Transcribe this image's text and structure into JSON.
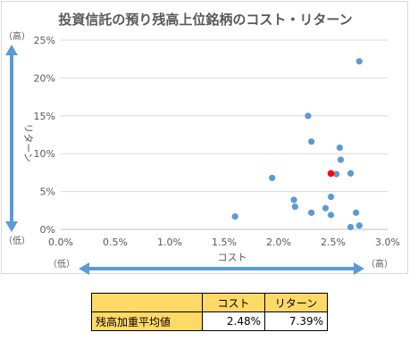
{
  "chart_data": {
    "type": "scatter",
    "title": "投資信託の預り残高上位銘柄のコスト・リターン",
    "xlabel": "コスト",
    "ylabel": "リターン",
    "xlim": [
      0,
      0.03
    ],
    "ylim": [
      0,
      0.25
    ],
    "x_ticks": [
      "0.0%",
      "0.5%",
      "1.0%",
      "1.5%",
      "2.0%",
      "2.5%",
      "3.0%"
    ],
    "y_ticks": [
      "0%",
      "5%",
      "10%",
      "15%",
      "20%",
      "25%"
    ],
    "x_ends": [
      "（低）",
      "（高）"
    ],
    "y_ends": [
      "（高）",
      "（低）"
    ],
    "grid": "horizontal",
    "point_color": "#5b9bd5",
    "highlight_color": "#ff0000",
    "points": [
      {
        "x": 0.016,
        "y": 0.017
      },
      {
        "x": 0.0194,
        "y": 0.068
      },
      {
        "x": 0.0214,
        "y": 0.039
      },
      {
        "x": 0.0215,
        "y": 0.03
      },
      {
        "x": 0.0227,
        "y": 0.15
      },
      {
        "x": 0.023,
        "y": 0.116
      },
      {
        "x": 0.023,
        "y": 0.022
      },
      {
        "x": 0.0243,
        "y": 0.028
      },
      {
        "x": 0.0248,
        "y": 0.043
      },
      {
        "x": 0.0248,
        "y": 0.019
      },
      {
        "x": 0.0253,
        "y": 0.073
      },
      {
        "x": 0.0256,
        "y": 0.108
      },
      {
        "x": 0.0257,
        "y": 0.092
      },
      {
        "x": 0.0266,
        "y": 0.074
      },
      {
        "x": 0.0266,
        "y": 0.003
      },
      {
        "x": 0.0271,
        "y": 0.022
      },
      {
        "x": 0.0274,
        "y": 0.222
      },
      {
        "x": 0.0274,
        "y": 0.005
      }
    ],
    "highlight_point": {
      "x": 0.0248,
      "y": 0.0739
    }
  },
  "table": {
    "headers": [
      "",
      "コスト",
      "リターン"
    ],
    "row_label": "残高加重平均値",
    "cost": "2.48%",
    "return": "7.39%"
  },
  "colors": {
    "arrow": "#5b9bd5",
    "table_header": "#ffd966"
  }
}
